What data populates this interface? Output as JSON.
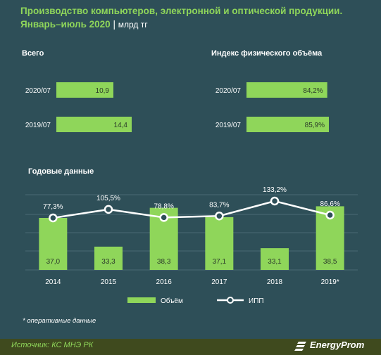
{
  "header": {
    "title_line1": "Производство компьютеров, электронной и оптической продукции.",
    "title_line2": "Январь–июль 2020",
    "separator": "|",
    "unit": "млрд тг"
  },
  "chart_data": [
    {
      "type": "bar",
      "orientation": "horizontal",
      "title": "Всего",
      "categories": [
        "2020/07",
        "2019/07"
      ],
      "values": [
        10.9,
        14.4
      ],
      "labels": [
        "10,9",
        "14,4"
      ],
      "xlim": [
        0,
        25
      ]
    },
    {
      "type": "bar",
      "orientation": "horizontal",
      "title": "Индекс физического объёма",
      "categories": [
        "2020/07",
        "2019/07"
      ],
      "values": [
        84.2,
        85.9
      ],
      "labels": [
        "84,2%",
        "85,9%"
      ],
      "xlim": [
        0,
        160
      ]
    },
    {
      "type": "bar",
      "title": "Годовые данные",
      "categories": [
        "2014",
        "2015",
        "2016",
        "2017",
        "2018",
        "2019*"
      ],
      "series": [
        {
          "name": "Объём",
          "type": "bar",
          "values": [
            37.0,
            33.3,
            38.3,
            37.1,
            33.1,
            38.5
          ],
          "labels": [
            "37,0",
            "33,3",
            "38,3",
            "37,1",
            "33,1",
            "38,5"
          ]
        },
        {
          "name": "ИПП",
          "type": "line",
          "values": [
            77.3,
            105.5,
            78.8,
            83.7,
            133.2,
            86.6
          ],
          "labels": [
            "77,3%",
            "105,5%",
            "78,8%",
            "83,7%",
            "133,2%",
            "86,6%"
          ]
        }
      ],
      "legend_position": "bottom",
      "grid": true
    }
  ],
  "note": "* оперативные данные",
  "footer": {
    "source": "Источник: КС МНЭ РК",
    "brand": "EnergyProm"
  },
  "colors": {
    "background": "#2e4f58",
    "bar": "#8fd65a",
    "line": "#ffffff",
    "footer": "#3f4a1e",
    "title": "#8fd65a",
    "text": "#ffffff",
    "value_text": "#2b3a2a"
  }
}
